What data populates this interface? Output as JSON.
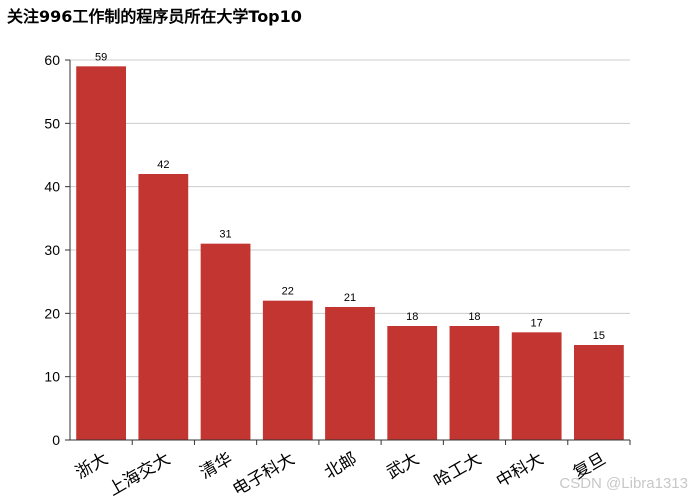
{
  "watermark": "CSDN @Libra1313",
  "colors": {
    "bar": "#c23531",
    "grid": "#cccccc",
    "axis": "#333333",
    "text": "#000000"
  },
  "chart_data": {
    "type": "bar",
    "title": "关注996工作制的程序员所在大学Top10",
    "categories": [
      "浙大",
      "上海交大",
      "清华",
      "电子科大",
      "北邮",
      "武大",
      "哈工大",
      "中科大",
      "复旦"
    ],
    "values": [
      59,
      42,
      31,
      22,
      21,
      18,
      18,
      17,
      15
    ],
    "ylim": [
      0,
      60
    ],
    "yticks": [
      0,
      10,
      20,
      30,
      40,
      50,
      60
    ],
    "xlabel": "",
    "ylabel": "",
    "grid": true,
    "data_labels": true,
    "xtick_rotation_deg": -30
  }
}
